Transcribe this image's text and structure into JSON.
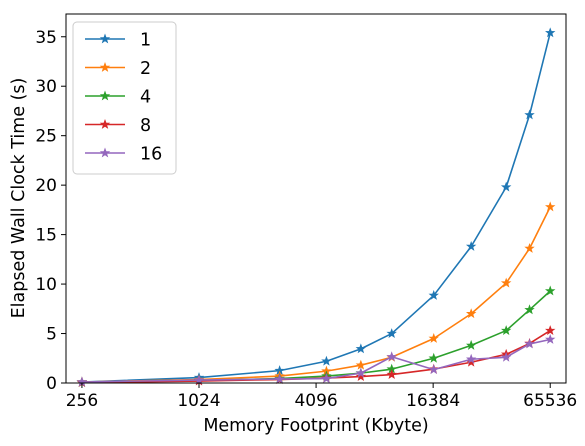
{
  "chart_data": {
    "type": "line",
    "title": "",
    "xlabel": "Memory Footprint (Kbyte)",
    "ylabel": "Elapsed Wall Clock Time (s)",
    "x_scale": "log2",
    "xlim": [
      212,
      79000
    ],
    "ylim": [
      0,
      37.3
    ],
    "x_ticks": [
      256,
      1024,
      4096,
      16384,
      65536
    ],
    "x_tick_labels": [
      "256",
      "1024",
      "4096",
      "16384",
      "65536"
    ],
    "y_ticks": [
      0,
      5,
      10,
      15,
      20,
      25,
      30,
      35
    ],
    "y_tick_labels": [
      "0",
      "5",
      "10",
      "15",
      "20",
      "25",
      "30",
      "35"
    ],
    "grid": false,
    "legend_position": "top-left",
    "marker": "star",
    "series": [
      {
        "name": "1",
        "color": "#1f77b4",
        "x": [
          256,
          1024,
          2660,
          4630,
          6960,
          10030,
          16500,
          25700,
          38900,
          51300,
          65536
        ],
        "y": [
          0.1,
          0.55,
          1.25,
          2.2,
          3.45,
          5.0,
          8.85,
          13.8,
          19.8,
          27.1,
          35.4
        ]
      },
      {
        "name": "2",
        "color": "#ff7f0e",
        "x": [
          256,
          1024,
          2660,
          4630,
          6960,
          10030,
          16500,
          25700,
          38900,
          51300,
          65536
        ],
        "y": [
          0.1,
          0.35,
          0.7,
          1.2,
          1.8,
          2.6,
          4.5,
          7.0,
          10.1,
          13.6,
          17.8
        ]
      },
      {
        "name": "4",
        "color": "#2ca02c",
        "x": [
          256,
          1024,
          2660,
          4630,
          6960,
          10030,
          16500,
          25700,
          38900,
          51300,
          65536
        ],
        "y": [
          0.05,
          0.25,
          0.45,
          0.7,
          1.0,
          1.4,
          2.5,
          3.8,
          5.3,
          7.4,
          9.3
        ]
      },
      {
        "name": "8",
        "color": "#d62728",
        "x": [
          256,
          1024,
          2660,
          4630,
          6960,
          10030,
          16500,
          25700,
          38900,
          51300,
          65536
        ],
        "y": [
          0.05,
          0.2,
          0.35,
          0.5,
          0.65,
          0.85,
          1.4,
          2.1,
          2.9,
          4.0,
          5.3
        ]
      },
      {
        "name": "16",
        "color": "#9467bd",
        "x": [
          256,
          1024,
          2660,
          4630,
          6960,
          10030,
          16500,
          25700,
          38900,
          51300,
          65536
        ],
        "y": [
          0.1,
          0.3,
          0.4,
          0.45,
          1.0,
          2.65,
          1.35,
          2.4,
          2.6,
          3.95,
          4.4
        ]
      }
    ]
  }
}
